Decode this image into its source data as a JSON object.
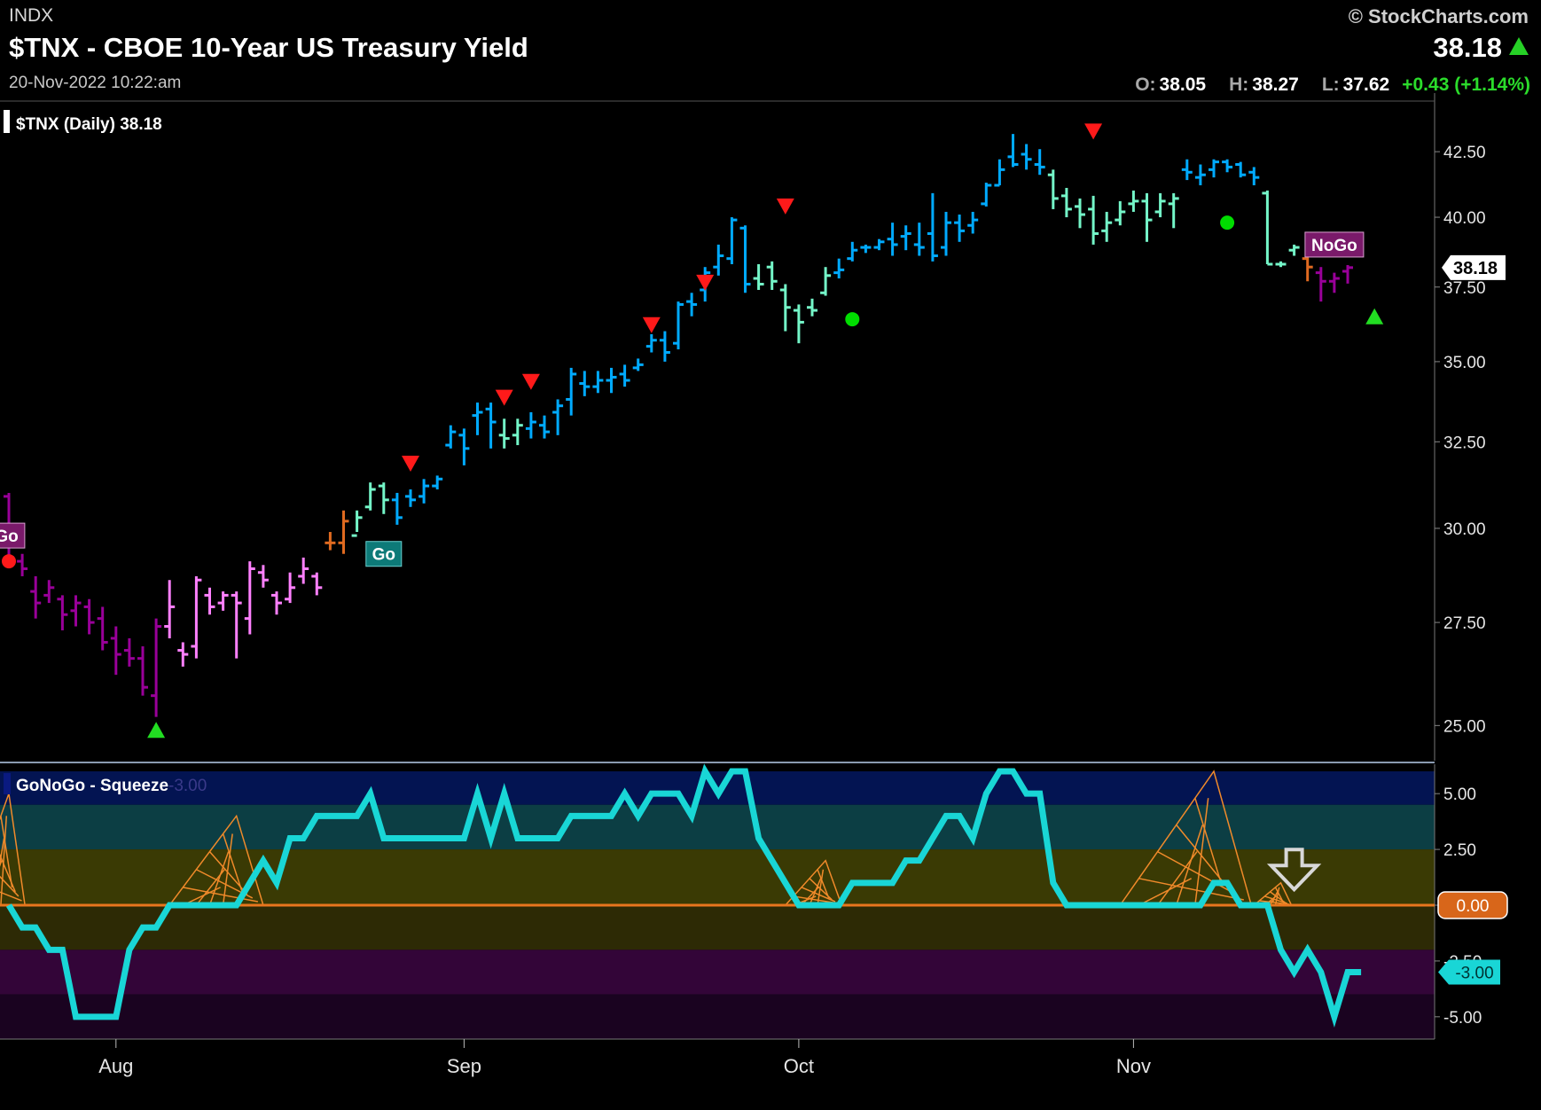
{
  "header": {
    "exchange": "INDX",
    "title": "$TNX - CBOE 10-Year US Treasury Yield",
    "datetime": "20-Nov-2022 10:22:am",
    "copyright": "© StockCharts.com",
    "last": "38.18",
    "open_label": "O:",
    "open": "38.05",
    "high_label": "H:",
    "high": "38.27",
    "low_label": "L:",
    "low": "37.62",
    "change": "+0.43 (+1.14%)"
  },
  "chart_data": [
    {
      "type": "ohlc-bar",
      "legend": "$TNX (Daily) 38.18",
      "price_axis": {
        "ticks": [
          25.0,
          27.5,
          30.0,
          32.5,
          35.0,
          37.5,
          40.0,
          42.5
        ],
        "tick_labels": [
          "25.00",
          "27.50",
          "30.00",
          "32.50",
          "35.00",
          "37.50",
          "40.00",
          "42.50"
        ],
        "scale": "log"
      },
      "x_axis": {
        "labels": [
          "Aug",
          "Sep",
          "Oct",
          "Nov"
        ],
        "label_bar_index": [
          8,
          34,
          59,
          84
        ]
      },
      "last_price_label": "38.18",
      "colors": {
        "go_bright": "#00aaff",
        "go_light": "#74f6c8",
        "nogo_dark": "#990099",
        "nogo_light": "#ff80ff",
        "neutral": "#e06a20"
      },
      "bars": [
        {
          "o": 30.9,
          "h": 31.0,
          "l": 29.1,
          "c": 29.2,
          "s": "nogo_dark"
        },
        {
          "o": 29.1,
          "h": 29.3,
          "l": 28.7,
          "c": 28.9,
          "s": "nogo_dark"
        },
        {
          "o": 28.3,
          "h": 28.7,
          "l": 27.6,
          "c": 28.0,
          "s": "nogo_dark"
        },
        {
          "o": 28.2,
          "h": 28.6,
          "l": 28.0,
          "c": 28.4,
          "s": "nogo_dark"
        },
        {
          "o": 28.1,
          "h": 28.2,
          "l": 27.3,
          "c": 27.7,
          "s": "nogo_dark"
        },
        {
          "o": 27.8,
          "h": 28.2,
          "l": 27.4,
          "c": 28.0,
          "s": "nogo_dark"
        },
        {
          "o": 27.9,
          "h": 28.1,
          "l": 27.2,
          "c": 27.5,
          "s": "nogo_dark"
        },
        {
          "o": 27.6,
          "h": 27.9,
          "l": 26.8,
          "c": 27.0,
          "s": "nogo_dark"
        },
        {
          "o": 27.1,
          "h": 27.4,
          "l": 26.2,
          "c": 26.7,
          "s": "nogo_dark"
        },
        {
          "o": 26.8,
          "h": 27.1,
          "l": 26.4,
          "c": 26.6,
          "s": "nogo_dark"
        },
        {
          "o": 26.6,
          "h": 26.9,
          "l": 25.7,
          "c": 25.9,
          "s": "nogo_dark"
        },
        {
          "o": 25.7,
          "h": 27.6,
          "l": 25.2,
          "c": 27.4,
          "s": "nogo_dark"
        },
        {
          "o": 27.4,
          "h": 28.6,
          "l": 27.1,
          "c": 27.9,
          "s": "nogo_light"
        },
        {
          "o": 26.8,
          "h": 27.0,
          "l": 26.4,
          "c": 26.7,
          "s": "nogo_light"
        },
        {
          "o": 26.9,
          "h": 28.7,
          "l": 26.6,
          "c": 28.6,
          "s": "nogo_light"
        },
        {
          "o": 28.2,
          "h": 28.4,
          "l": 27.7,
          "c": 27.9,
          "s": "nogo_light"
        },
        {
          "o": 28.0,
          "h": 28.3,
          "l": 27.8,
          "c": 28.2,
          "s": "nogo_light"
        },
        {
          "o": 28.2,
          "h": 28.3,
          "l": 26.6,
          "c": 28.0,
          "s": "nogo_light"
        },
        {
          "o": 27.6,
          "h": 29.1,
          "l": 27.2,
          "c": 28.9,
          "s": "nogo_light"
        },
        {
          "o": 28.8,
          "h": 29.0,
          "l": 28.4,
          "c": 28.6,
          "s": "nogo_light"
        },
        {
          "o": 28.2,
          "h": 28.3,
          "l": 27.7,
          "c": 28.0,
          "s": "nogo_light"
        },
        {
          "o": 28.1,
          "h": 28.8,
          "l": 28.0,
          "c": 28.4,
          "s": "nogo_light"
        },
        {
          "o": 28.7,
          "h": 29.2,
          "l": 28.5,
          "c": 28.9,
          "s": "nogo_light"
        },
        {
          "o": 28.7,
          "h": 28.8,
          "l": 28.2,
          "c": 28.4,
          "s": "nogo_light"
        },
        {
          "o": 29.6,
          "h": 29.9,
          "l": 29.4,
          "c": 29.6,
          "s": "neutral"
        },
        {
          "o": 29.6,
          "h": 30.5,
          "l": 29.3,
          "c": 30.2,
          "s": "neutral"
        },
        {
          "o": 29.8,
          "h": 30.5,
          "l": 29.9,
          "c": 30.3,
          "s": "go_light"
        },
        {
          "o": 30.6,
          "h": 31.3,
          "l": 30.5,
          "c": 31.1,
          "s": "go_light"
        },
        {
          "o": 31.2,
          "h": 31.3,
          "l": 30.4,
          "c": 30.8,
          "s": "go_light"
        },
        {
          "o": 30.8,
          "h": 31.0,
          "l": 30.1,
          "c": 30.3,
          "s": "go_bright"
        },
        {
          "o": 30.9,
          "h": 31.1,
          "l": 30.6,
          "c": 30.8,
          "s": "go_bright"
        },
        {
          "o": 30.9,
          "h": 31.4,
          "l": 30.7,
          "c": 31.2,
          "s": "go_bright"
        },
        {
          "o": 31.2,
          "h": 31.5,
          "l": 31.1,
          "c": 31.4,
          "s": "go_bright"
        },
        {
          "o": 32.4,
          "h": 33.0,
          "l": 32.3,
          "c": 32.8,
          "s": "go_bright"
        },
        {
          "o": 32.7,
          "h": 32.9,
          "l": 31.8,
          "c": 32.3,
          "s": "go_bright"
        },
        {
          "o": 33.3,
          "h": 33.7,
          "l": 32.7,
          "c": 33.4,
          "s": "go_bright"
        },
        {
          "o": 33.5,
          "h": 33.7,
          "l": 32.3,
          "c": 33.1,
          "s": "go_bright"
        },
        {
          "o": 32.7,
          "h": 33.2,
          "l": 32.3,
          "c": 32.6,
          "s": "go_light"
        },
        {
          "o": 32.7,
          "h": 33.2,
          "l": 32.4,
          "c": 33.0,
          "s": "go_light"
        },
        {
          "o": 32.9,
          "h": 33.4,
          "l": 32.6,
          "c": 33.1,
          "s": "go_bright"
        },
        {
          "o": 33.0,
          "h": 33.3,
          "l": 32.6,
          "c": 32.8,
          "s": "go_bright"
        },
        {
          "o": 33.4,
          "h": 33.8,
          "l": 32.7,
          "c": 33.6,
          "s": "go_bright"
        },
        {
          "o": 33.8,
          "h": 34.8,
          "l": 33.3,
          "c": 34.6,
          "s": "go_bright"
        },
        {
          "o": 34.3,
          "h": 34.7,
          "l": 33.9,
          "c": 34.2,
          "s": "go_bright"
        },
        {
          "o": 34.2,
          "h": 34.7,
          "l": 34.0,
          "c": 34.4,
          "s": "go_bright"
        },
        {
          "o": 34.4,
          "h": 34.8,
          "l": 34.0,
          "c": 34.5,
          "s": "go_bright"
        },
        {
          "o": 34.6,
          "h": 34.9,
          "l": 34.2,
          "c": 34.4,
          "s": "go_bright"
        },
        {
          "o": 34.8,
          "h": 35.1,
          "l": 34.7,
          "c": 34.9,
          "s": "go_bright"
        },
        {
          "o": 35.5,
          "h": 35.9,
          "l": 35.3,
          "c": 35.7,
          "s": "go_bright"
        },
        {
          "o": 35.7,
          "h": 36.0,
          "l": 35.0,
          "c": 35.3,
          "s": "go_bright"
        },
        {
          "o": 35.6,
          "h": 37.0,
          "l": 35.4,
          "c": 36.9,
          "s": "go_bright"
        },
        {
          "o": 37.0,
          "h": 37.3,
          "l": 36.5,
          "c": 36.9,
          "s": "go_bright"
        },
        {
          "o": 37.4,
          "h": 38.2,
          "l": 37.0,
          "c": 38.0,
          "s": "go_bright"
        },
        {
          "o": 38.2,
          "h": 39.0,
          "l": 37.9,
          "c": 38.6,
          "s": "go_bright"
        },
        {
          "o": 38.5,
          "h": 40.0,
          "l": 38.3,
          "c": 39.9,
          "s": "go_bright"
        },
        {
          "o": 39.6,
          "h": 39.7,
          "l": 37.3,
          "c": 37.6,
          "s": "go_bright"
        },
        {
          "o": 37.8,
          "h": 38.3,
          "l": 37.4,
          "c": 37.6,
          "s": "go_light"
        },
        {
          "o": 38.2,
          "h": 38.4,
          "l": 37.4,
          "c": 37.7,
          "s": "go_light"
        },
        {
          "o": 37.4,
          "h": 37.6,
          "l": 36.0,
          "c": 36.8,
          "s": "go_light"
        },
        {
          "o": 36.7,
          "h": 36.9,
          "l": 35.6,
          "c": 36.3,
          "s": "go_light"
        },
        {
          "o": 36.8,
          "h": 37.1,
          "l": 36.5,
          "c": 36.7,
          "s": "go_light"
        },
        {
          "o": 37.3,
          "h": 38.2,
          "l": 37.2,
          "c": 37.9,
          "s": "go_light"
        },
        {
          "o": 38.0,
          "h": 38.5,
          "l": 37.8,
          "c": 38.1,
          "s": "go_bright"
        },
        {
          "o": 38.5,
          "h": 39.1,
          "l": 38.4,
          "c": 38.8,
          "s": "go_bright"
        },
        {
          "o": 38.9,
          "h": 39.0,
          "l": 38.7,
          "c": 38.9,
          "s": "go_bright"
        },
        {
          "o": 38.9,
          "h": 39.2,
          "l": 38.8,
          "c": 39.1,
          "s": "go_bright"
        },
        {
          "o": 39.2,
          "h": 39.8,
          "l": 38.6,
          "c": 39.0,
          "s": "go_bright"
        },
        {
          "o": 39.3,
          "h": 39.7,
          "l": 38.8,
          "c": 39.4,
          "s": "go_bright"
        },
        {
          "o": 39.0,
          "h": 39.8,
          "l": 38.6,
          "c": 38.9,
          "s": "go_bright"
        },
        {
          "o": 39.4,
          "h": 40.9,
          "l": 38.4,
          "c": 38.6,
          "s": "go_bright"
        },
        {
          "o": 38.9,
          "h": 40.2,
          "l": 38.6,
          "c": 39.8,
          "s": "go_bright"
        },
        {
          "o": 39.8,
          "h": 40.1,
          "l": 39.1,
          "c": 39.5,
          "s": "go_bright"
        },
        {
          "o": 39.7,
          "h": 40.2,
          "l": 39.4,
          "c": 39.9,
          "s": "go_bright"
        },
        {
          "o": 40.5,
          "h": 41.3,
          "l": 40.4,
          "c": 41.2,
          "s": "go_bright"
        },
        {
          "o": 41.2,
          "h": 42.2,
          "l": 41.2,
          "c": 41.8,
          "s": "go_bright"
        },
        {
          "o": 42.3,
          "h": 43.2,
          "l": 41.9,
          "c": 42.0,
          "s": "go_bright"
        },
        {
          "o": 42.4,
          "h": 42.8,
          "l": 41.8,
          "c": 42.2,
          "s": "go_bright"
        },
        {
          "o": 42.0,
          "h": 42.6,
          "l": 41.6,
          "c": 41.9,
          "s": "go_bright"
        },
        {
          "o": 41.6,
          "h": 41.8,
          "l": 40.3,
          "c": 40.7,
          "s": "go_light"
        },
        {
          "o": 40.8,
          "h": 41.1,
          "l": 40.0,
          "c": 40.3,
          "s": "go_light"
        },
        {
          "o": 40.4,
          "h": 40.7,
          "l": 39.6,
          "c": 40.1,
          "s": "go_light"
        },
        {
          "o": 40.3,
          "h": 40.8,
          "l": 39.0,
          "c": 39.4,
          "s": "go_light"
        },
        {
          "o": 39.5,
          "h": 40.2,
          "l": 39.1,
          "c": 39.8,
          "s": "go_light"
        },
        {
          "o": 39.9,
          "h": 40.6,
          "l": 39.7,
          "c": 40.2,
          "s": "go_light"
        },
        {
          "o": 40.5,
          "h": 41.0,
          "l": 40.2,
          "c": 40.6,
          "s": "go_light"
        },
        {
          "o": 40.6,
          "h": 40.9,
          "l": 39.1,
          "c": 39.9,
          "s": "go_light"
        },
        {
          "o": 40.2,
          "h": 40.9,
          "l": 40.0,
          "c": 40.6,
          "s": "go_light"
        },
        {
          "o": 40.5,
          "h": 40.9,
          "l": 39.6,
          "c": 40.7,
          "s": "go_light"
        },
        {
          "o": 41.8,
          "h": 42.2,
          "l": 41.4,
          "c": 41.7,
          "s": "go_bright"
        },
        {
          "o": 41.5,
          "h": 42.0,
          "l": 41.2,
          "c": 41.6,
          "s": "go_bright"
        },
        {
          "o": 41.8,
          "h": 42.2,
          "l": 41.5,
          "c": 42.1,
          "s": "go_bright"
        },
        {
          "o": 42.1,
          "h": 42.2,
          "l": 41.7,
          "c": 41.9,
          "s": "go_bright"
        },
        {
          "o": 42.0,
          "h": 42.1,
          "l": 41.5,
          "c": 41.6,
          "s": "go_bright"
        },
        {
          "o": 41.7,
          "h": 41.9,
          "l": 41.2,
          "c": 41.5,
          "s": "go_bright"
        },
        {
          "o": 40.9,
          "h": 41.0,
          "l": 38.3,
          "c": 38.3,
          "s": "go_light"
        },
        {
          "o": 38.3,
          "h": 38.4,
          "l": 38.2,
          "c": 38.3,
          "s": "go_light"
        },
        {
          "o": 38.8,
          "h": 39.0,
          "l": 38.6,
          "c": 38.9,
          "s": "go_light"
        },
        {
          "o": 38.5,
          "h": 38.6,
          "l": 37.7,
          "c": 38.2,
          "s": "neutral"
        },
        {
          "o": 38.0,
          "h": 38.2,
          "l": 37.0,
          "c": 37.7,
          "s": "nogo_dark"
        },
        {
          "o": 37.7,
          "h": 38.0,
          "l": 37.3,
          "c": 37.8,
          "s": "nogo_dark"
        },
        {
          "o": 38.05,
          "h": 38.27,
          "l": 37.62,
          "c": 38.18,
          "s": "nogo_dark"
        }
      ],
      "markers": [
        {
          "bar": 0,
          "kind": "dot",
          "color": "#ff1a1a",
          "price": 29.1
        },
        {
          "bar": 11,
          "kind": "tri-up",
          "color": "#22dd22",
          "price": 24.9
        },
        {
          "bar": 30,
          "kind": "tri-down",
          "color": "#ff1a1a",
          "price": 31.85
        },
        {
          "bar": 37,
          "kind": "tri-down",
          "color": "#ff1a1a",
          "price": 33.85
        },
        {
          "bar": 39,
          "kind": "tri-down",
          "color": "#ff1a1a",
          "price": 34.35
        },
        {
          "bar": 48,
          "kind": "tri-down",
          "color": "#ff1a1a",
          "price": 36.2
        },
        {
          "bar": 52,
          "kind": "tri-down",
          "color": "#ff1a1a",
          "price": 37.65
        },
        {
          "bar": 58,
          "kind": "tri-down",
          "color": "#ff1a1a",
          "price": 40.4
        },
        {
          "bar": 63,
          "kind": "dot",
          "color": "#00dd00",
          "price": 36.4
        },
        {
          "bar": 81,
          "kind": "tri-down",
          "color": "#ff1a1a",
          "price": 43.3
        },
        {
          "bar": 91,
          "kind": "dot",
          "color": "#00dd00",
          "price": 39.8
        },
        {
          "bar": 102,
          "kind": "tri-up",
          "color": "#22dd22",
          "price": 36.5
        }
      ],
      "labels": [
        {
          "text": "NoGo",
          "bar": -1,
          "price": 29.8,
          "bg": "#7a1a6a",
          "border": "#d9a0d0"
        },
        {
          "text": "Go",
          "bar": 28,
          "price": 29.3,
          "bg": "#0d7a78",
          "border": "#6ad0d0"
        },
        {
          "text": "NoGo",
          "bar": 99,
          "price": 39.0,
          "bg": "#7a1a6a",
          "border": "#d9a0d0"
        }
      ]
    },
    {
      "type": "line",
      "name": "GoNoGo - Squeeze",
      "legend_value": "-3.00",
      "y_axis": {
        "ticks": [
          5.0,
          2.5,
          0.0,
          -2.5,
          -5.0
        ],
        "tick_labels": [
          "5.00",
          "2.50",
          "0.00",
          "-2.50",
          "-5.00"
        ],
        "range": [
          -6.0,
          6.0
        ]
      },
      "zero_label": "0.00",
      "last_label": "-3.00",
      "colors": {
        "line": "#19d6d6",
        "zero": "#e8761e",
        "squeeze": "#f08a2a"
      },
      "zones": [
        {
          "from": 4.5,
          "to": 6.0,
          "color": "#031452"
        },
        {
          "from": 2.5,
          "to": 4.5,
          "color": "#0c3e44"
        },
        {
          "from": 0.0,
          "to": 2.5,
          "color": "#3a3a04"
        },
        {
          "from": -2.0,
          "to": 0.0,
          "color": "#2d2a05"
        },
        {
          "from": -4.0,
          "to": -2.0,
          "color": "#330538"
        },
        {
          "from": -6.0,
          "to": -4.0,
          "color": "#1a0320"
        }
      ],
      "values": [
        0,
        -1,
        -1,
        -2,
        -2,
        -5,
        -5,
        -5,
        -5,
        -2,
        -1,
        -1,
        0,
        0,
        0,
        0,
        0,
        0,
        1,
        2,
        1,
        3,
        3,
        4,
        4,
        4,
        4,
        5,
        3,
        3,
        3,
        3,
        3,
        3,
        3,
        5,
        3,
        5,
        3,
        3,
        3,
        3,
        4,
        4,
        4,
        4,
        5,
        4,
        5,
        5,
        5,
        4,
        6,
        5,
        6,
        6,
        3,
        2,
        1,
        0,
        0,
        0,
        0,
        1,
        1,
        1,
        1,
        2,
        2,
        3,
        4,
        4,
        3,
        5,
        6,
        6,
        5,
        5,
        1,
        0,
        0,
        0,
        0,
        0,
        0,
        0,
        0,
        0,
        0,
        0,
        1,
        1,
        0,
        0,
        0,
        -2,
        -3,
        -2,
        -3,
        -5,
        -3,
        -3
      ],
      "line_bar_offset": 0,
      "squeeze_peaks": [
        {
          "bar": 0,
          "height": 5.0,
          "width": 3
        },
        {
          "bar": 17,
          "height": 4.0,
          "width": 5
        },
        {
          "bar": 61,
          "height": 2.0,
          "width": 3
        },
        {
          "bar": 90,
          "height": 6.0,
          "width": 7
        },
        {
          "bar": 95,
          "height": 1.0,
          "width": 2
        }
      ],
      "arrow": {
        "bar": 96,
        "value": 1.5,
        "color": "#d8d8d8"
      }
    }
  ]
}
